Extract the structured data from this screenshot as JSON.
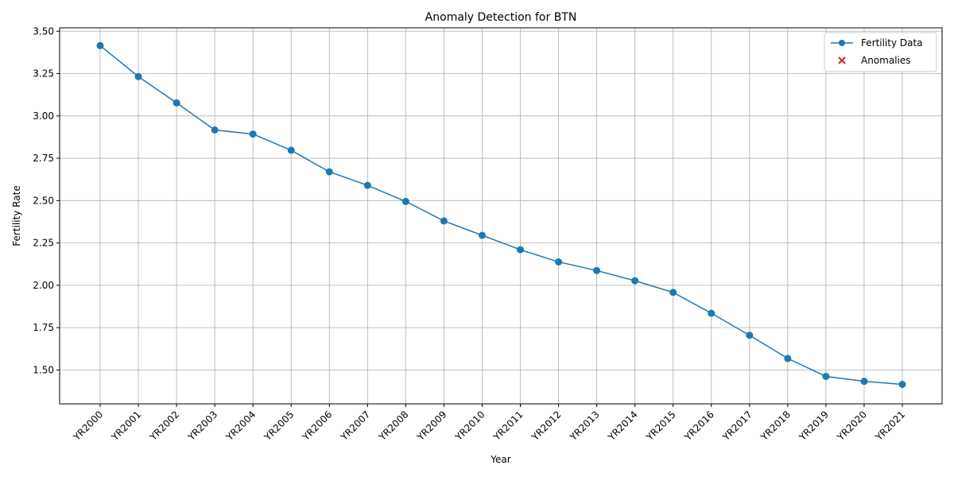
{
  "chart_data": {
    "type": "line",
    "title": "Anomaly Detection for BTN",
    "xlabel": "Year",
    "ylabel": "Fertility Rate",
    "categories": [
      "YR2000",
      "YR2001",
      "YR2002",
      "YR2003",
      "YR2004",
      "YR2005",
      "YR2006",
      "YR2007",
      "YR2008",
      "YR2009",
      "YR2010",
      "YR2011",
      "YR2012",
      "YR2013",
      "YR2014",
      "YR2015",
      "YR2016",
      "YR2017",
      "YR2018",
      "YR2019",
      "YR2020",
      "YR2021"
    ],
    "series": [
      {
        "name": "Fertility Data",
        "values": [
          3.415,
          3.232,
          3.077,
          2.917,
          2.893,
          2.797,
          2.67,
          2.59,
          2.495,
          2.38,
          2.295,
          2.21,
          2.138,
          2.087,
          2.027,
          1.958,
          1.835,
          1.705,
          1.568,
          1.462,
          1.433,
          1.415
        ],
        "color": "#1f77b4",
        "marker": "circle"
      }
    ],
    "anomalies": {
      "name": "Anomalies",
      "color": "#d62728",
      "marker": "x",
      "points": []
    },
    "ylim": [
      1.3,
      3.52
    ],
    "yticks": [
      "1.50",
      "1.75",
      "2.00",
      "2.25",
      "2.50",
      "2.75",
      "3.00",
      "3.25",
      "3.50"
    ],
    "grid": true,
    "legend_position": "top-right"
  }
}
